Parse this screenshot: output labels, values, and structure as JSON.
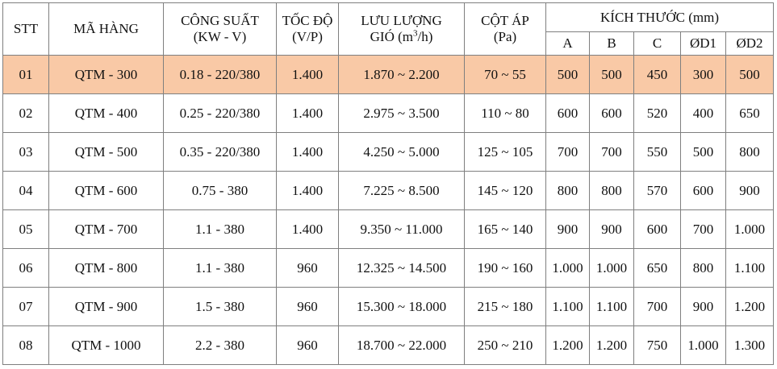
{
  "header": {
    "stt": "STT",
    "ma_hang": "MÃ HÀNG",
    "cong_suat_1": "CÔNG SUẤT",
    "cong_suat_2": "(KW - V)",
    "toc_do_1": "TỐC ĐỘ",
    "toc_do_2": "(V/P)",
    "luu_luong_1": "LƯU LƯỢNG",
    "luu_luong_2a": "GIÓ (m",
    "luu_luong_sup": "3",
    "luu_luong_2b": "/h)",
    "cot_ap_1": "CỘT ÁP",
    "cot_ap_2": "(Pa)",
    "kich_thuoc": "KÍCH THƯỚC (mm)",
    "dim_a": "A",
    "dim_b": "B",
    "dim_c": "C",
    "dim_d1": "ØD1",
    "dim_d2": "ØD2"
  },
  "highlight_color": "#f9c9a6",
  "rows": [
    {
      "stt": "01",
      "ma": "QTM - 300",
      "cong_suat": "0.18 - 220/380",
      "toc_do": "1.400",
      "luu_luong": "1.870 ~ 2.200",
      "cot_ap": "70 ~ 55",
      "a": "500",
      "b": "500",
      "c": "450",
      "d1": "300",
      "d2": "500"
    },
    {
      "stt": "02",
      "ma": "QTM - 400",
      "cong_suat": "0.25 - 220/380",
      "toc_do": "1.400",
      "luu_luong": "2.975 ~ 3.500",
      "cot_ap": "110 ~ 80",
      "a": "600",
      "b": "600",
      "c": "520",
      "d1": "400",
      "d2": "650"
    },
    {
      "stt": "03",
      "ma": "QTM - 500",
      "cong_suat": "0.35 - 220/380",
      "toc_do": "1.400",
      "luu_luong": "4.250 ~ 5.000",
      "cot_ap": "125 ~ 105",
      "a": "700",
      "b": "700",
      "c": "550",
      "d1": "500",
      "d2": "800"
    },
    {
      "stt": "04",
      "ma": "QTM - 600",
      "cong_suat": "0.75 - 380",
      "toc_do": "1.400",
      "luu_luong": "7.225 ~ 8.500",
      "cot_ap": "145 ~ 120",
      "a": "800",
      "b": "800",
      "c": "570",
      "d1": "600",
      "d2": "900"
    },
    {
      "stt": "05",
      "ma": "QTM - 700",
      "cong_suat": "1.1 - 380",
      "toc_do": "1.400",
      "luu_luong": "9.350 ~ 11.000",
      "cot_ap": "165 ~ 140",
      "a": "900",
      "b": "900",
      "c": "600",
      "d1": "700",
      "d2": "1.000"
    },
    {
      "stt": "06",
      "ma": "QTM - 800",
      "cong_suat": "1.1 - 380",
      "toc_do": "960",
      "luu_luong": "12.325 ~ 14.500",
      "cot_ap": "190 ~ 160",
      "a": "1.000",
      "b": "1.000",
      "c": "650",
      "d1": "800",
      "d2": "1.100"
    },
    {
      "stt": "07",
      "ma": "QTM - 900",
      "cong_suat": "1.5 - 380",
      "toc_do": "960",
      "luu_luong": "15.300 ~ 18.000",
      "cot_ap": "215 ~ 180",
      "a": "1.100",
      "b": "1.100",
      "c": "700",
      "d1": "900",
      "d2": "1.200"
    },
    {
      "stt": "08",
      "ma": "QTM - 1000",
      "cong_suat": "2.2 - 380",
      "toc_do": "960",
      "luu_luong": "18.700 ~ 22.000",
      "cot_ap": "250 ~ 210",
      "a": "1.200",
      "b": "1.200",
      "c": "750",
      "d1": "1.000",
      "d2": "1.300"
    }
  ]
}
